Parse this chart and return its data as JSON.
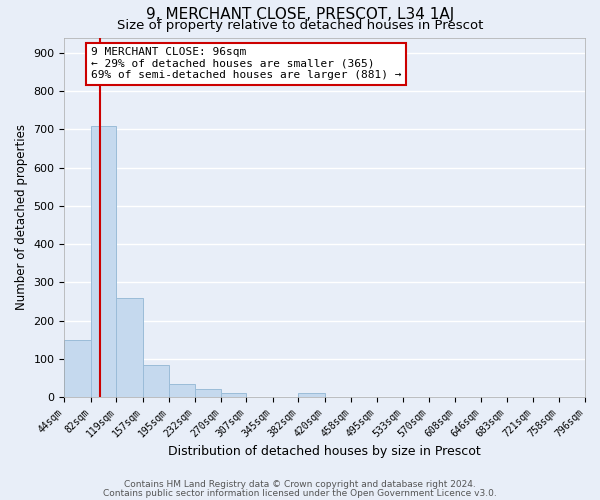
{
  "title_line1": "9, MERCHANT CLOSE, PRESCOT, L34 1AJ",
  "title_line2": "Size of property relative to detached houses in Prescot",
  "xlabel": "Distribution of detached houses by size in Prescot",
  "ylabel": "Number of detached properties",
  "bin_edges": [
    44,
    82,
    119,
    157,
    195,
    232,
    270,
    307,
    345,
    382,
    420,
    458,
    495,
    533,
    570,
    608,
    646,
    683,
    721,
    758,
    796
  ],
  "bar_heights": [
    150,
    710,
    260,
    85,
    35,
    22,
    10,
    0,
    0,
    10,
    0,
    0,
    0,
    0,
    0,
    0,
    0,
    0,
    0,
    0
  ],
  "bar_color": "#c5d9ee",
  "bar_edgecolor": "#9bbcd8",
  "property_size": 96,
  "vline_x": 96,
  "vline_color": "#cc0000",
  "annotation_text": "9 MERCHANT CLOSE: 96sqm\n← 29% of detached houses are smaller (365)\n69% of semi-detached houses are larger (881) →",
  "annotation_box_edgecolor": "#cc0000",
  "annotation_box_facecolor": "#ffffff",
  "ylim": [
    0,
    940
  ],
  "yticks": [
    0,
    100,
    200,
    300,
    400,
    500,
    600,
    700,
    800,
    900
  ],
  "tick_labels": [
    "44sqm",
    "82sqm",
    "119sqm",
    "157sqm",
    "195sqm",
    "232sqm",
    "270sqm",
    "307sqm",
    "345sqm",
    "382sqm",
    "420sqm",
    "458sqm",
    "495sqm",
    "533sqm",
    "570sqm",
    "608sqm",
    "646sqm",
    "683sqm",
    "721sqm",
    "758sqm",
    "796sqm"
  ],
  "footer_line1": "Contains HM Land Registry data © Crown copyright and database right 2024.",
  "footer_line2": "Contains public sector information licensed under the Open Government Licence v3.0.",
  "background_color": "#e8eef8",
  "grid_color": "#ffffff",
  "title1_fontsize": 11,
  "title2_fontsize": 9.5,
  "xlabel_fontsize": 9,
  "ylabel_fontsize": 8.5,
  "footer_fontsize": 6.5,
  "annot_fontsize": 8,
  "tick_fontsize": 7,
  "ytick_fontsize": 8
}
